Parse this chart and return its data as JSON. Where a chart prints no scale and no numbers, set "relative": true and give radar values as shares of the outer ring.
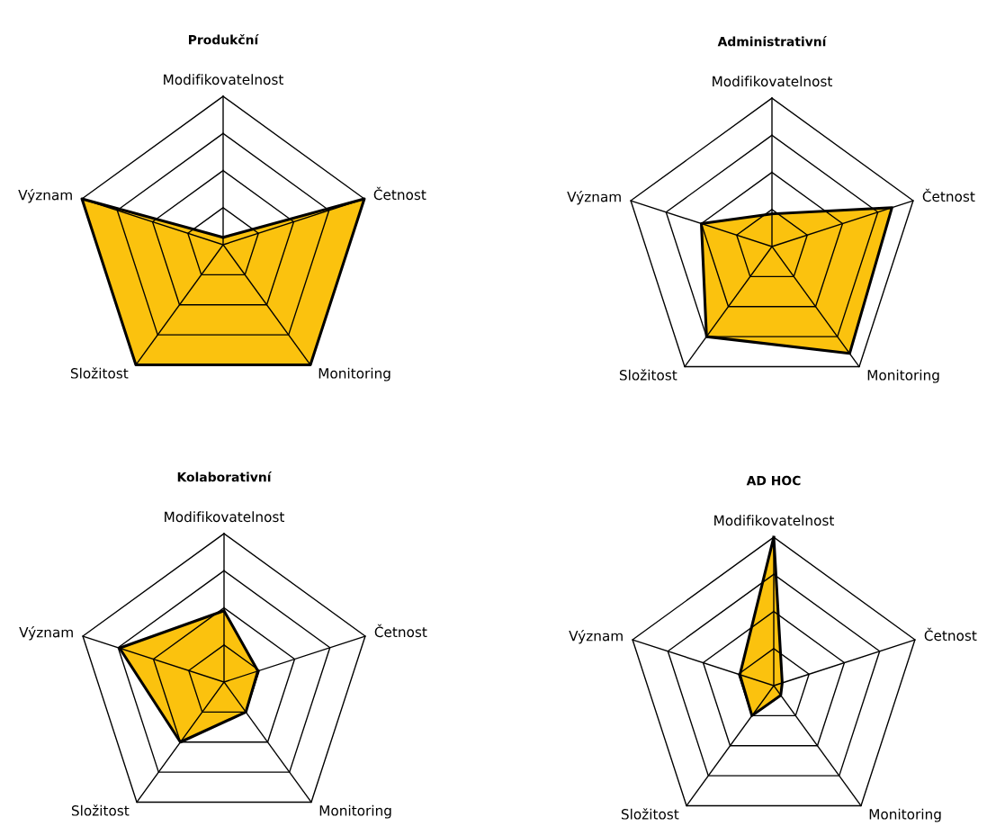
{
  "chart_data": [
    {
      "type": "radar",
      "title": "Produkční",
      "categories": [
        "Modifikovatelnost",
        "Četnost",
        "Monitoring",
        "Složitost",
        "Význam"
      ],
      "relative": true,
      "series": [
        {
          "color": "#fbc20e",
          "values": [
            0.05,
            1,
            1,
            1,
            1
          ]
        }
      ]
    },
    {
      "type": "radar",
      "title": "Administrativní",
      "categories": [
        "Modifikovatelnost",
        "Četnost",
        "Monitoring",
        "Složitost",
        "Význam"
      ],
      "relative": true,
      "series": [
        {
          "color": "#fbc20e",
          "values": [
            0.22,
            0.85,
            0.89,
            0.75,
            0.5
          ]
        }
      ]
    },
    {
      "type": "radar",
      "title": "Kolaborativní",
      "categories": [
        "Modifikovatelnost",
        "Četnost",
        "Monitoring",
        "Složitost",
        "Význam"
      ],
      "relative": true,
      "series": [
        {
          "color": "#fbc20e",
          "values": [
            0.48,
            0.24,
            0.25,
            0.5,
            0.74
          ]
        }
      ]
    },
    {
      "type": "radar",
      "title": "AD HOC",
      "categories": [
        "Modifikovatelnost",
        "Četnost",
        "Monitoring",
        "Složitost",
        "Význam"
      ],
      "relative": true,
      "series": [
        {
          "color": "#fbc20e",
          "values": [
            1,
            0.06,
            0.08,
            0.25,
            0.24
          ]
        }
      ]
    }
  ]
}
